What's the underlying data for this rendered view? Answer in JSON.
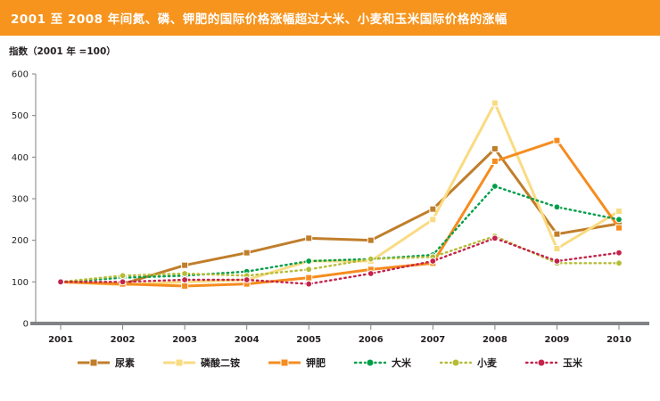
{
  "header": {
    "title": "2001 至 2008 年间氮、磷、钾肥的国际价格涨幅超过大米、小麦和玉米国际价格的涨幅",
    "background_color": "#F7941D",
    "text_color": "#FFFFFF"
  },
  "chart_data": {
    "type": "line",
    "title": "2001 至 2008 年间氮、磷、钾肥的国际价格涨幅超过大米、小麦和玉米国际价格的涨幅",
    "index_label": "指数（2001 年 =100）",
    "categories": [
      "2001",
      "2002",
      "2003",
      "2004",
      "2005",
      "2006",
      "2007",
      "2008",
      "2009",
      "2010"
    ],
    "ylim": [
      0,
      600
    ],
    "yticks": [
      0,
      100,
      200,
      300,
      400,
      500,
      600
    ],
    "grid": false,
    "legend_position": "bottom",
    "axis_color": "#808285",
    "tick_text_color": "#231F20",
    "series": [
      {
        "name": "尿素",
        "color": "#C07E2B",
        "style": "solid",
        "marker": "square",
        "values": [
          100,
          95,
          140,
          170,
          205,
          200,
          275,
          420,
          215,
          240
        ]
      },
      {
        "name": "磷酸二铵",
        "color": "#F9DB82",
        "style": "solid",
        "marker": "square",
        "values": [
          100,
          93,
          100,
          105,
          150,
          150,
          250,
          530,
          180,
          270
        ]
      },
      {
        "name": "钾肥",
        "color": "#F68C1F",
        "style": "solid",
        "marker": "square",
        "values": [
          100,
          95,
          90,
          95,
          110,
          130,
          145,
          390,
          440,
          230
        ]
      },
      {
        "name": "大米",
        "color": "#009E49",
        "style": "dotted",
        "dash": "1.5,4",
        "marker": "circle",
        "values": [
          100,
          110,
          115,
          125,
          150,
          155,
          165,
          330,
          280,
          250
        ]
      },
      {
        "name": "小麦",
        "color": "#B6BC35",
        "style": "dotted",
        "dash": "1.5,4",
        "marker": "circle",
        "values": [
          100,
          115,
          120,
          115,
          130,
          155,
          160,
          210,
          145,
          145
        ]
      },
      {
        "name": "玉米",
        "color": "#C4234B",
        "style": "dotted",
        "dash": "1.5,4",
        "marker": "circle",
        "values": [
          100,
          100,
          105,
          105,
          95,
          120,
          150,
          205,
          150,
          170
        ]
      }
    ]
  }
}
